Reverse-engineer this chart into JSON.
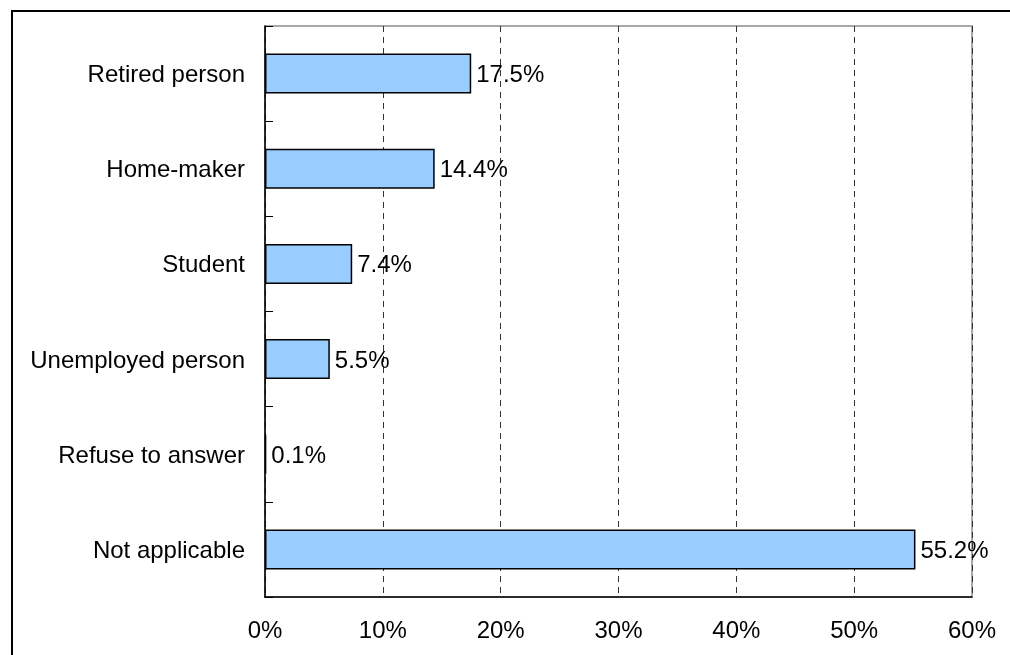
{
  "chart_data": {
    "type": "bar",
    "orientation": "horizontal",
    "categories": [
      "Retired person",
      "Home-maker",
      "Student",
      "Unemployed person",
      "Refuse to answer",
      "Not applicable"
    ],
    "values": [
      17.5,
      14.4,
      7.4,
      5.5,
      0.1,
      55.2
    ],
    "value_labels": [
      "17.5%",
      "14.4%",
      "7.4%",
      "5.5%",
      "0.1%",
      "55.2%"
    ],
    "color": "#99ccff",
    "xlim": [
      0,
      60
    ],
    "xticks": [
      {
        "value": 0,
        "label": "0%"
      },
      {
        "value": 10,
        "label": "10%"
      },
      {
        "value": 20,
        "label": "20%"
      },
      {
        "value": 30,
        "label": "30%"
      },
      {
        "value": 40,
        "label": "40%"
      },
      {
        "value": 50,
        "label": "50%"
      },
      {
        "value": 60,
        "label": "60%"
      }
    ],
    "grid": "x"
  }
}
